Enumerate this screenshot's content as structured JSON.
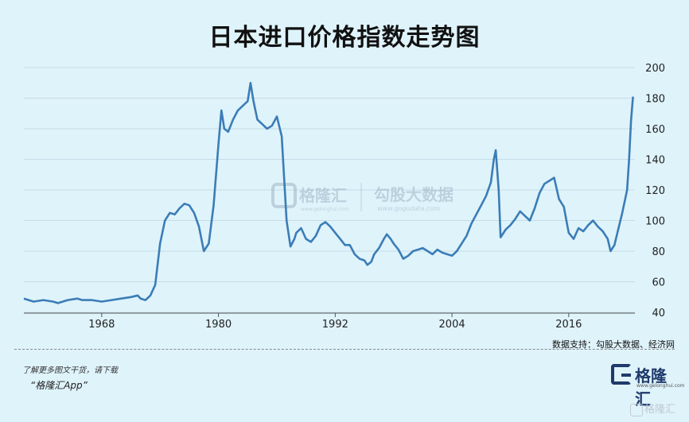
{
  "title": "日本进口价格指数走势图",
  "source": "数据支持：勾股大数据、经济网",
  "footer": {
    "note": "了解更多图文干货，请下载",
    "app": "“格隆汇App”",
    "logo_text": "格隆汇",
    "logo_url": "www.gelonghui.com",
    "corner_mark": "格隆汇"
  },
  "watermark": {
    "brand1": "格隆汇",
    "brand1_url": "www.gelonghui.com",
    "brand2": "勾股大数据",
    "brand2_url": "www.gogudata.com"
  },
  "colors": {
    "line": "#3b7db6",
    "background": "#dff3fb",
    "grid": "#c5dbe6"
  },
  "chart_data": {
    "type": "line",
    "title": "日本进口价格指数走势图",
    "xlabel": "",
    "ylabel": "",
    "xlim": [
      1960,
      2022.8
    ],
    "ylim": [
      40,
      200
    ],
    "yticks": [
      40,
      60,
      80,
      100,
      120,
      140,
      160,
      180,
      200
    ],
    "xticks": [
      1968,
      1980,
      1992,
      2004,
      2016
    ],
    "grid": true,
    "y_axis_side": "right",
    "series": [
      {
        "name": "",
        "points": [
          [
            1960.0,
            49
          ],
          [
            1961.0,
            47
          ],
          [
            1962.0,
            48
          ],
          [
            1963.0,
            47
          ],
          [
            1963.5,
            46
          ],
          [
            1964.5,
            48
          ],
          [
            1965.5,
            49
          ],
          [
            1966.0,
            48
          ],
          [
            1967.0,
            48
          ],
          [
            1968.0,
            47
          ],
          [
            1969.0,
            48
          ],
          [
            1970.0,
            49
          ],
          [
            1971.0,
            50
          ],
          [
            1971.7,
            51
          ],
          [
            1972.0,
            49
          ],
          [
            1972.5,
            48
          ],
          [
            1973.0,
            51
          ],
          [
            1973.5,
            58
          ],
          [
            1974.0,
            85
          ],
          [
            1974.5,
            100
          ],
          [
            1975.0,
            105
          ],
          [
            1975.5,
            104
          ],
          [
            1976.0,
            108
          ],
          [
            1976.5,
            111
          ],
          [
            1977.0,
            110
          ],
          [
            1977.5,
            105
          ],
          [
            1978.0,
            96
          ],
          [
            1978.5,
            80
          ],
          [
            1979.0,
            85
          ],
          [
            1979.5,
            110
          ],
          [
            1980.0,
            150
          ],
          [
            1980.3,
            172
          ],
          [
            1980.6,
            160
          ],
          [
            1981.0,
            158
          ],
          [
            1981.5,
            166
          ],
          [
            1982.0,
            172
          ],
          [
            1982.5,
            175
          ],
          [
            1983.0,
            178
          ],
          [
            1983.3,
            190
          ],
          [
            1983.6,
            178
          ],
          [
            1984.0,
            166
          ],
          [
            1984.5,
            163
          ],
          [
            1985.0,
            160
          ],
          [
            1985.5,
            162
          ],
          [
            1986.0,
            168
          ],
          [
            1986.5,
            155
          ],
          [
            1987.0,
            100
          ],
          [
            1987.4,
            83
          ],
          [
            1987.8,
            88
          ],
          [
            1988.0,
            92
          ],
          [
            1988.5,
            95
          ],
          [
            1989.0,
            88
          ],
          [
            1989.5,
            86
          ],
          [
            1990.0,
            90
          ],
          [
            1990.5,
            97
          ],
          [
            1991.0,
            99
          ],
          [
            1991.5,
            96
          ],
          [
            1992.0,
            92
          ],
          [
            1992.5,
            88
          ],
          [
            1993.0,
            84
          ],
          [
            1993.5,
            84
          ],
          [
            1994.0,
            78
          ],
          [
            1994.5,
            75
          ],
          [
            1995.0,
            74
          ],
          [
            1995.3,
            71
          ],
          [
            1995.7,
            73
          ],
          [
            1996.0,
            78
          ],
          [
            1996.5,
            82
          ],
          [
            1997.0,
            88
          ],
          [
            1997.3,
            91
          ],
          [
            1997.7,
            88
          ],
          [
            1998.0,
            85
          ],
          [
            1998.5,
            81
          ],
          [
            1999.0,
            75
          ],
          [
            1999.5,
            77
          ],
          [
            2000.0,
            80
          ],
          [
            2000.5,
            81
          ],
          [
            2001.0,
            82
          ],
          [
            2001.5,
            80
          ],
          [
            2002.0,
            78
          ],
          [
            2002.5,
            81
          ],
          [
            2003.0,
            79
          ],
          [
            2003.5,
            78
          ],
          [
            2004.0,
            77
          ],
          [
            2004.5,
            80
          ],
          [
            2005.0,
            85
          ],
          [
            2005.5,
            90
          ],
          [
            2006.0,
            98
          ],
          [
            2006.5,
            104
          ],
          [
            2007.0,
            110
          ],
          [
            2007.5,
            116
          ],
          [
            2008.0,
            125
          ],
          [
            2008.3,
            140
          ],
          [
            2008.5,
            146
          ],
          [
            2008.8,
            120
          ],
          [
            2009.0,
            89
          ],
          [
            2009.5,
            94
          ],
          [
            2010.0,
            97
          ],
          [
            2010.5,
            101
          ],
          [
            2011.0,
            106
          ],
          [
            2011.5,
            103
          ],
          [
            2012.0,
            100
          ],
          [
            2012.5,
            108
          ],
          [
            2013.0,
            118
          ],
          [
            2013.5,
            124
          ],
          [
            2014.0,
            126
          ],
          [
            2014.5,
            128
          ],
          [
            2015.0,
            114
          ],
          [
            2015.5,
            109
          ],
          [
            2016.0,
            92
          ],
          [
            2016.5,
            88
          ],
          [
            2017.0,
            95
          ],
          [
            2017.5,
            93
          ],
          [
            2018.0,
            97
          ],
          [
            2018.5,
            100
          ],
          [
            2019.0,
            96
          ],
          [
            2019.5,
            93
          ],
          [
            2020.0,
            88
          ],
          [
            2020.3,
            80
          ],
          [
            2020.7,
            84
          ],
          [
            2021.0,
            92
          ],
          [
            2021.5,
            105
          ],
          [
            2022.0,
            120
          ],
          [
            2022.2,
            140
          ],
          [
            2022.4,
            165
          ],
          [
            2022.6,
            181
          ]
        ]
      }
    ]
  }
}
